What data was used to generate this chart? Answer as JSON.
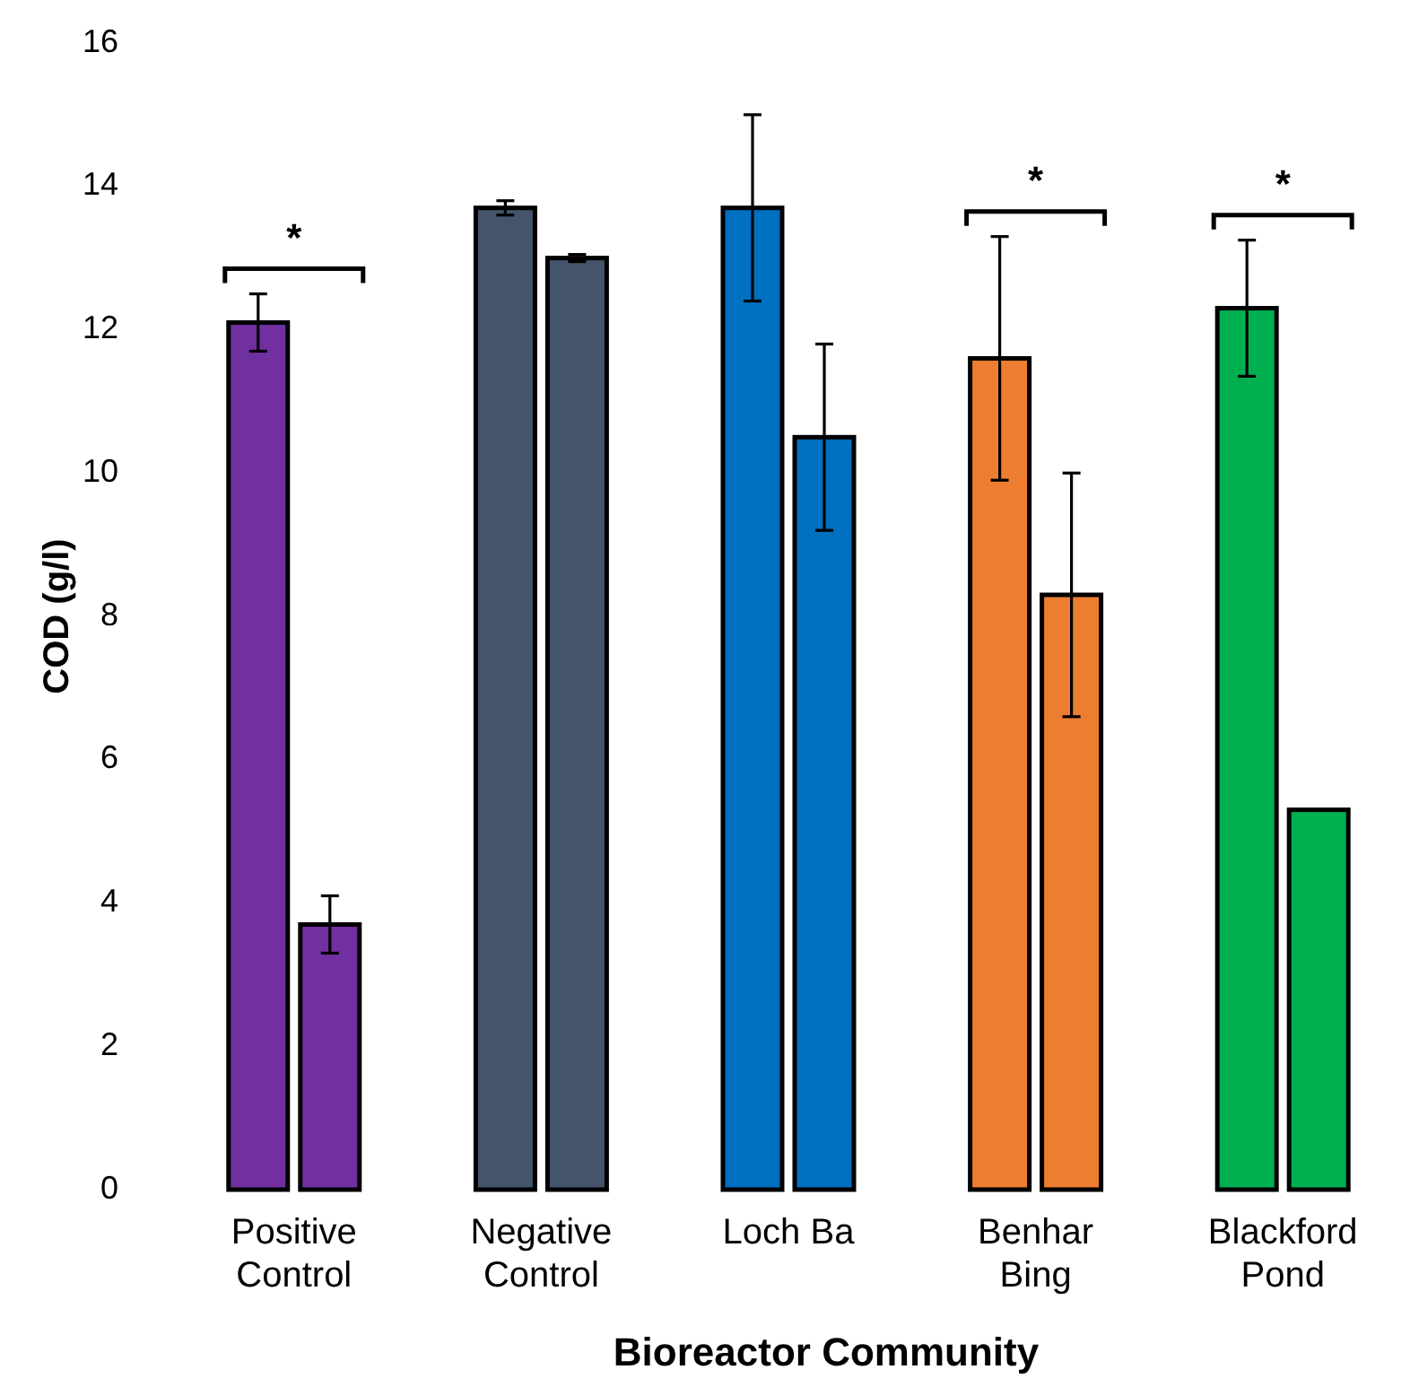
{
  "chart_data": {
    "type": "bar",
    "xlabel": "Bioreactor Community",
    "ylabel": "COD (g/l)",
    "categories": [
      "Positive Control",
      "Negative Control",
      "Loch Ba",
      "Benhar Bing",
      "Blackford Pond"
    ],
    "series": [
      {
        "colors": [
          "#7030a0",
          "#44546a",
          "#0070c0",
          "#ed7d31",
          "#00b050"
        ],
        "values": [
          12.1,
          13.7,
          13.7,
          11.6,
          12.3
        ],
        "errors": [
          0.4,
          0.1,
          1.3,
          1.7,
          0.95
        ]
      },
      {
        "colors": [
          "#7030a0",
          "#44546a",
          "#0070c0",
          "#ed7d31",
          "#00b050"
        ],
        "values": [
          3.7,
          13.0,
          10.5,
          8.3,
          5.3
        ],
        "errors": [
          0.4,
          0.05,
          1.3,
          1.7,
          null
        ]
      }
    ],
    "ylim": [
      0,
      16
    ],
    "yticks": [
      0,
      2,
      4,
      6,
      8,
      10,
      12,
      14,
      16
    ],
    "grid": false,
    "annotations": [
      "*",
      "*",
      "*"
    ]
  }
}
